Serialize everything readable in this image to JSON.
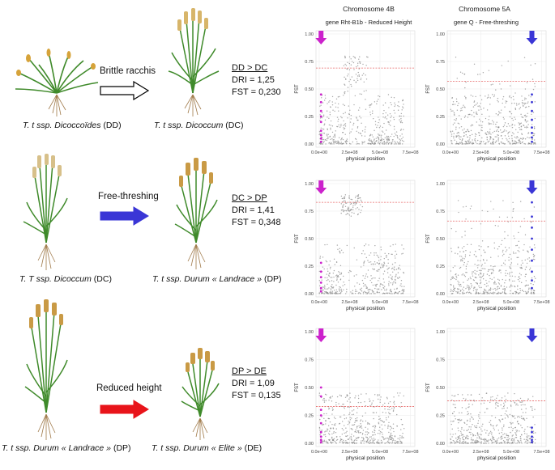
{
  "columns": {
    "chr4b": {
      "header": "Chromosome 4B",
      "gene": "gene Rht-B1b - Reduced Height"
    },
    "chr5a": {
      "header": "Chromosome 5A",
      "gene": "gene Q - Free-threshing"
    }
  },
  "rows": [
    {
      "from_prefix": "T. t ssp. ",
      "from_name": "Dicoccoïdes",
      "from_code": " (DD)",
      "to_prefix": "T. t ssp. ",
      "to_name": "Dicoccum",
      "to_code": " (DC)",
      "trait": "Brittle racchis",
      "arrow_color": "#ffffff",
      "comparison": "DD > DC",
      "dri": "DRI = 1,25",
      "fst": "FST = 0,230"
    },
    {
      "from_prefix": "T. T ssp. ",
      "from_name": "Dicoccum",
      "from_code": " (DC)",
      "to_prefix": "T. t ssp. ",
      "to_name": "Durum « Landrace »",
      "to_code": " (DP)",
      "trait": "Free-threshing",
      "arrow_color": "#3a36d6",
      "comparison": "DC > DP",
      "dri": "DRI = 1,41",
      "fst": "FST = 0,348"
    },
    {
      "from_prefix": "T. t ssp. ",
      "from_name": "Durum « Landrace »",
      "from_code": " (DP)",
      "to_prefix": "T. t ssp. ",
      "to_name": "Durum « Elite »",
      "to_code": " (DE)",
      "trait": "Reduced height",
      "arrow_color": "#e8141a",
      "comparison": "DP > DE",
      "dri": "DRI = 1,09",
      "fst": "FST = 0,135"
    }
  ],
  "chart_data": [
    {
      "type": "scatter",
      "chromosome": "4B",
      "row": 1,
      "ylabel": "FST",
      "xlabel": "physical position",
      "xticks": [
        "0.0e+00",
        "2.5e+08",
        "5.0e+08",
        "7.5e+08"
      ],
      "yticks": [
        "0.00",
        "0.25",
        "0.50",
        "0.75",
        "1.00"
      ],
      "xlim": [
        0,
        760000000.0
      ],
      "ylim": [
        0,
        1
      ],
      "threshold": 0.69,
      "highlight_color": "#cc22cc",
      "highlight_x": 15000000.0,
      "highlight_values": [
        0.02,
        0.05,
        0.08,
        0.12,
        0.2,
        0.25,
        0.3,
        0.38,
        0.45
      ]
    },
    {
      "type": "scatter",
      "chromosome": "5A",
      "row": 1,
      "ylabel": "FST",
      "xlabel": "physical position",
      "xticks": [
        "0.0e+00",
        "2.5e+08",
        "5.0e+08",
        "7.5e+08"
      ],
      "yticks": [
        "0.00",
        "0.25",
        "0.50",
        "0.75",
        "1.00"
      ],
      "xlim": [
        0,
        760000000.0
      ],
      "ylim": [
        0,
        1
      ],
      "threshold": 0.57,
      "highlight_color": "#3a36d6",
      "highlight_x": 670000000.0,
      "highlight_values": [
        0.02,
        0.06,
        0.1,
        0.15,
        0.22,
        0.3,
        0.38,
        0.45
      ]
    },
    {
      "type": "scatter",
      "chromosome": "4B",
      "row": 2,
      "ylabel": "FST",
      "xlabel": "physical position",
      "xticks": [
        "0.0e+00",
        "2.5e+08",
        "5.0e+08",
        "7.5e+08"
      ],
      "yticks": [
        "0.00",
        "0.25",
        "0.50",
        "0.75",
        "1.00"
      ],
      "xlim": [
        0,
        760000000.0
      ],
      "ylim": [
        0,
        1
      ],
      "threshold": 0.83,
      "highlight_color": "#cc22cc",
      "highlight_x": 15000000.0,
      "highlight_values": [
        0.02,
        0.05,
        0.1,
        0.15,
        0.2,
        0.28
      ]
    },
    {
      "type": "scatter",
      "chromosome": "5A",
      "row": 2,
      "ylabel": "FST",
      "xlabel": "physical position",
      "xticks": [
        "0.0e+00",
        "2.5e+08",
        "5.0e+08",
        "7.5e+08"
      ],
      "yticks": [
        "0.00",
        "0.25",
        "0.50",
        "0.75",
        "1.00"
      ],
      "xlim": [
        0,
        760000000.0
      ],
      "ylim": [
        0,
        1
      ],
      "threshold": 0.66,
      "highlight_color": "#3a36d6",
      "highlight_x": 670000000.0,
      "highlight_values": [
        0.05,
        0.12,
        0.2,
        0.3,
        0.4,
        0.5,
        0.6,
        0.7,
        0.83
      ]
    },
    {
      "type": "scatter",
      "chromosome": "4B",
      "row": 3,
      "ylabel": "FST",
      "xlabel": "physical position",
      "xticks": [
        "0.0e+00",
        "2.5e+08",
        "5.0e+08",
        "7.5e+08"
      ],
      "yticks": [
        "0.00",
        "0.25",
        "0.50",
        "0.75",
        "1.00"
      ],
      "xlim": [
        0,
        760000000.0
      ],
      "ylim": [
        0,
        1
      ],
      "threshold": 0.33,
      "highlight_color": "#cc22cc",
      "highlight_x": 15000000.0,
      "highlight_values": [
        0.01,
        0.03,
        0.06,
        0.1,
        0.18,
        0.25,
        0.3,
        0.42,
        0.5
      ]
    },
    {
      "type": "scatter",
      "chromosome": "5A",
      "row": 3,
      "ylabel": "FST",
      "xlabel": "physical position",
      "xticks": [
        "0.0e+00",
        "2.5e+08",
        "5.0e+08",
        "7.5e+08"
      ],
      "yticks": [
        "0.00",
        "0.25",
        "0.50",
        "0.75",
        "1.00"
      ],
      "xlim": [
        0,
        760000000.0
      ],
      "ylim": [
        0,
        1
      ],
      "threshold": 0.38,
      "highlight_color": "#3a36d6",
      "highlight_x": 670000000.0,
      "highlight_values": [
        0.01,
        0.03,
        0.06,
        0.1,
        0.14
      ]
    }
  ]
}
